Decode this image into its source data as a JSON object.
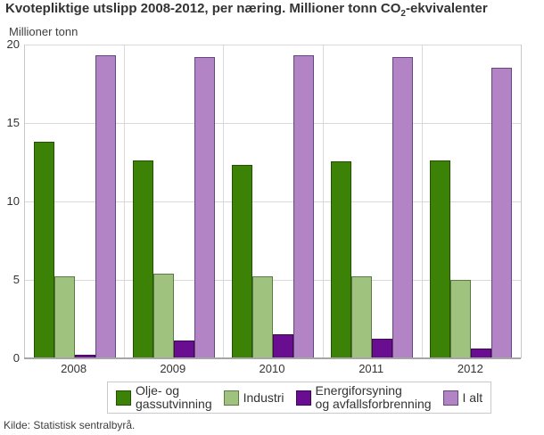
{
  "title": {
    "prefix": "Kvotepliktige utslipp 2008-2012, per næring. Millioner tonn CO",
    "subscript": "2",
    "suffix": "-ekvivalenter"
  },
  "source": "Kilde: Statistisk sentralbyrå.",
  "colors": {
    "grid": "#d9d9d9",
    "plot_border": "#c9c9c9",
    "axis_line": "#a6a6a6",
    "text": "#333333"
  },
  "chart_data": {
    "type": "bar",
    "title": "Kvotepliktige utslipp 2008-2012, per næring. Millioner tonn CO2-ekvivalenter",
    "ylabel": "Millioner tonn",
    "xlabel": "",
    "categories": [
      "2008",
      "2009",
      "2010",
      "2011",
      "2012"
    ],
    "series": [
      {
        "name": "Olje- og gassutvinning",
        "label_lines": [
          "Olje- og",
          "gassutvinning"
        ],
        "color": "#3b8206",
        "border_color": "#215103",
        "values": [
          13.8,
          12.6,
          12.35,
          12.55,
          12.6
        ]
      },
      {
        "name": "Industri",
        "label_lines": [
          "Industri"
        ],
        "color": "#9fc37e",
        "border_color": "#5d7a45",
        "values": [
          5.25,
          5.4,
          5.25,
          5.2,
          5.0
        ]
      },
      {
        "name": "Energiforsyning og avfallsforbrenning",
        "label_lines": [
          "Energiforsyning",
          "og avfallsforbrenning"
        ],
        "color": "#6a0e91",
        "border_color": "#3f0557",
        "values": [
          0.2,
          1.15,
          1.55,
          1.25,
          0.65
        ]
      },
      {
        "name": "I alt",
        "label_lines": [
          "I alt"
        ],
        "color": "#b283c5",
        "border_color": "#68477c",
        "values": [
          19.3,
          19.2,
          19.3,
          19.2,
          18.55
        ]
      }
    ],
    "ylim": [
      0,
      20
    ],
    "yticks": [
      0,
      5,
      10,
      15,
      20
    ],
    "grid": true,
    "legend_position": "bottom"
  }
}
